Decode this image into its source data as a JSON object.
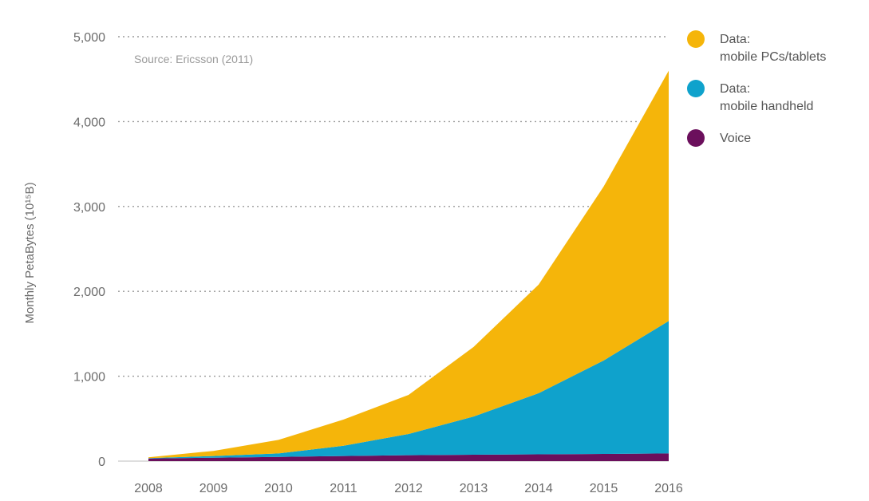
{
  "chart_data": {
    "type": "area",
    "stacked": true,
    "title": "",
    "ylabel": "Monthly PetaBytes (10¹⁵B)",
    "xlabel": "",
    "source_note": "Source: Ericsson (2011)",
    "x": [
      "2008",
      "2009",
      "2010",
      "2011",
      "2012",
      "2013",
      "2014",
      "2015",
      "2016"
    ],
    "ylim": [
      0,
      5000
    ],
    "yticks": [
      0,
      1000,
      2000,
      3000,
      4000,
      5000
    ],
    "ytick_labels": [
      "0",
      "1,000",
      "2,000",
      "3,000",
      "4,000",
      "5,000"
    ],
    "grid": true,
    "legend_position": "top-right",
    "series": [
      {
        "name": "Voice",
        "color": "#6b0f5c",
        "values": [
          30,
          40,
          50,
          60,
          70,
          75,
          80,
          85,
          90
        ]
      },
      {
        "name": "Data: mobile handheld",
        "legend_lines": [
          "Data:",
          "mobile handheld"
        ],
        "color": "#0fa2cc",
        "values": [
          5,
          20,
          40,
          120,
          250,
          450,
          720,
          1100,
          1560
        ]
      },
      {
        "name": "Data: mobile PCs/tablets",
        "legend_lines": [
          "Data:",
          "mobile PCs/tablets"
        ],
        "color": "#f5b50a",
        "values": [
          10,
          60,
          160,
          310,
          460,
          820,
          1280,
          2050,
          2950
        ]
      }
    ],
    "legend_order": [
      2,
      1,
      0
    ]
  }
}
